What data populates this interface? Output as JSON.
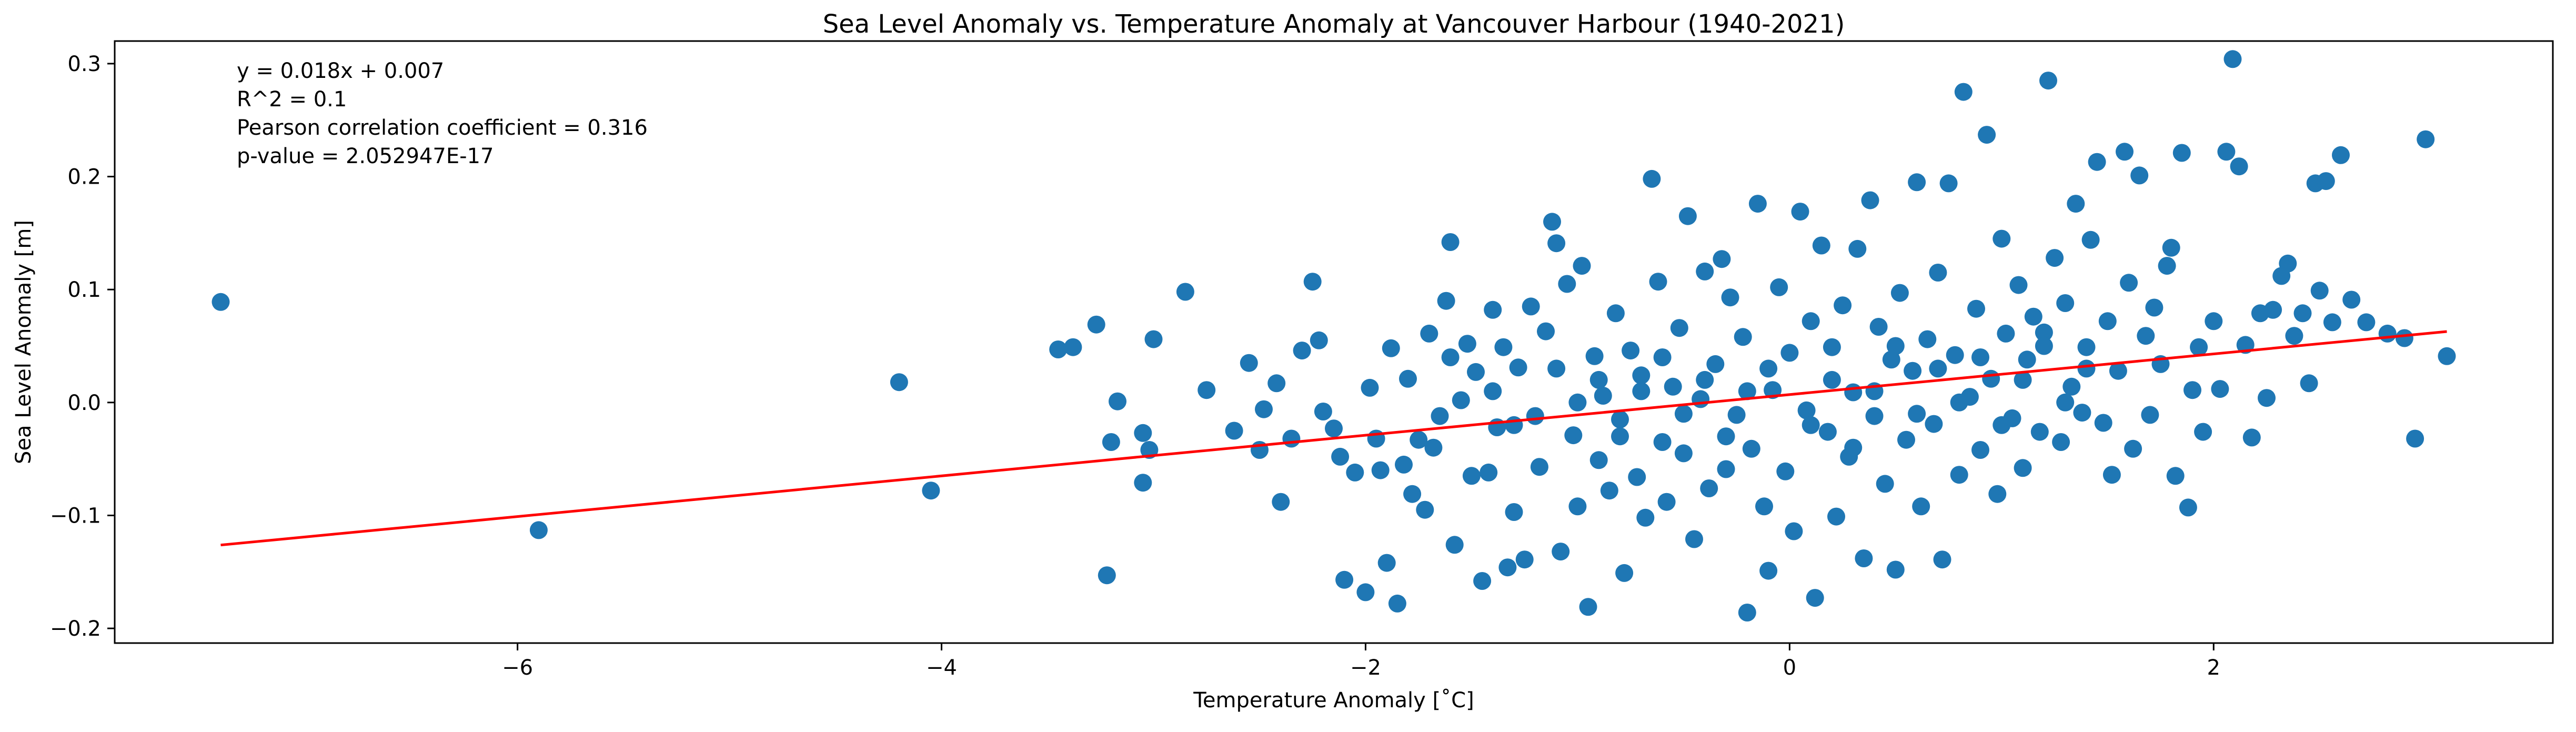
{
  "chart_data": {
    "type": "scatter",
    "title": "Sea Level Anomaly vs. Temperature Anomaly at Vancouver Harbour (1940-2021)",
    "xlabel": "Temperature Anomaly [˚C]",
    "ylabel": "Sea Level Anomaly [m]",
    "xlim": [
      -7.9,
      3.6
    ],
    "ylim": [
      -0.213,
      0.32
    ],
    "xticks": [
      -6,
      -4,
      -2,
      0,
      2
    ],
    "xtick_labels": [
      "−6",
      "−4",
      "−2",
      "0",
      "2"
    ],
    "yticks": [
      -0.2,
      -0.1,
      0.0,
      0.1,
      0.2,
      0.3
    ],
    "ytick_labels": [
      "−0.2",
      "−0.1",
      "0.0",
      "0.1",
      "0.2",
      "0.3"
    ],
    "grid": false,
    "annotations": [
      "y = 0.018x + 0.007",
      "R^2 = 0.1",
      "Pearson correlation coefficient = 0.316",
      "p-value = 2.052947E-17"
    ],
    "fit": {
      "slope": 0.018,
      "intercept": 0.007,
      "x": [
        -7.4,
        3.1
      ],
      "color": "#ff0000"
    },
    "marker_color": "#1f77b4",
    "points": [
      [
        -7.4,
        0.089
      ],
      [
        -5.9,
        -0.113
      ],
      [
        -4.2,
        0.018
      ],
      [
        -4.05,
        -0.078
      ],
      [
        -3.45,
        0.047
      ],
      [
        -3.38,
        0.049
      ],
      [
        -3.27,
        0.069
      ],
      [
        -3.22,
        -0.153
      ],
      [
        -3.2,
        -0.035
      ],
      [
        -3.17,
        0.001
      ],
      [
        -3.05,
        -0.027
      ],
      [
        -3.05,
        -0.071
      ],
      [
        -3.02,
        -0.042
      ],
      [
        -3.0,
        0.056
      ],
      [
        -2.85,
        0.098
      ],
      [
        -2.75,
        0.011
      ],
      [
        -2.62,
        -0.025
      ],
      [
        -2.55,
        0.035
      ],
      [
        -2.5,
        -0.042
      ],
      [
        -2.48,
        -0.006
      ],
      [
        -2.42,
        0.017
      ],
      [
        -2.4,
        -0.088
      ],
      [
        -2.35,
        -0.032
      ],
      [
        -2.3,
        0.046
      ],
      [
        -2.25,
        0.107
      ],
      [
        -2.22,
        0.055
      ],
      [
        -2.2,
        -0.008
      ],
      [
        -2.15,
        -0.023
      ],
      [
        -2.12,
        -0.048
      ],
      [
        -2.1,
        -0.157
      ],
      [
        -2.05,
        -0.062
      ],
      [
        -2.0,
        -0.168
      ],
      [
        -1.98,
        0.013
      ],
      [
        -1.95,
        -0.032
      ],
      [
        -1.93,
        -0.06
      ],
      [
        -1.9,
        -0.142
      ],
      [
        -1.88,
        0.048
      ],
      [
        -1.85,
        -0.178
      ],
      [
        -1.82,
        -0.055
      ],
      [
        -1.8,
        0.021
      ],
      [
        -1.78,
        -0.081
      ],
      [
        -1.75,
        -0.033
      ],
      [
        -1.72,
        -0.095
      ],
      [
        -1.7,
        0.061
      ],
      [
        -1.68,
        -0.04
      ],
      [
        -1.65,
        -0.012
      ],
      [
        -1.62,
        0.09
      ],
      [
        -1.6,
        0.142
      ],
      [
        -1.58,
        -0.126
      ],
      [
        -1.55,
        0.002
      ],
      [
        -1.52,
        0.052
      ],
      [
        -1.5,
        -0.065
      ],
      [
        -1.48,
        0.027
      ],
      [
        -1.45,
        -0.158
      ],
      [
        -1.42,
        -0.062
      ],
      [
        -1.4,
        0.082
      ],
      [
        -1.38,
        -0.022
      ],
      [
        -1.35,
        0.049
      ],
      [
        -1.33,
        -0.146
      ],
      [
        -1.3,
        -0.097
      ],
      [
        -1.28,
        0.031
      ],
      [
        -1.25,
        -0.139
      ],
      [
        -1.22,
        0.085
      ],
      [
        -1.2,
        -0.012
      ],
      [
        -1.18,
        -0.057
      ],
      [
        -1.15,
        0.063
      ],
      [
        -1.12,
        0.16
      ],
      [
        -1.1,
        0.141
      ],
      [
        -1.08,
        -0.132
      ],
      [
        -1.05,
        0.105
      ],
      [
        -1.02,
        -0.029
      ],
      [
        -1.0,
        -0.092
      ],
      [
        -0.98,
        0.121
      ],
      [
        -0.95,
        -0.181
      ],
      [
        -0.92,
        0.041
      ],
      [
        -0.9,
        -0.051
      ],
      [
        -0.88,
        0.006
      ],
      [
        -0.85,
        -0.078
      ],
      [
        -0.82,
        0.079
      ],
      [
        -0.8,
        -0.015
      ],
      [
        -0.78,
        -0.151
      ],
      [
        -0.75,
        0.046
      ],
      [
        -0.72,
        -0.066
      ],
      [
        -0.7,
        0.024
      ],
      [
        -0.68,
        -0.102
      ],
      [
        -0.65,
        0.198
      ],
      [
        -0.62,
        0.107
      ],
      [
        -0.6,
        -0.035
      ],
      [
        -0.58,
        -0.088
      ],
      [
        -0.55,
        0.014
      ],
      [
        -0.52,
        0.066
      ],
      [
        -0.5,
        -0.045
      ],
      [
        -0.48,
        0.165
      ],
      [
        -0.45,
        -0.121
      ],
      [
        -0.42,
        0.003
      ],
      [
        -0.4,
        0.116
      ],
      [
        -0.38,
        -0.076
      ],
      [
        -0.35,
        0.034
      ],
      [
        -0.32,
        0.127
      ],
      [
        -0.3,
        -0.059
      ],
      [
        -0.28,
        0.093
      ],
      [
        -0.25,
        -0.011
      ],
      [
        -0.22,
        0.058
      ],
      [
        -0.2,
        -0.186
      ],
      [
        -0.18,
        -0.041
      ],
      [
        -0.15,
        0.176
      ],
      [
        -0.12,
        -0.092
      ],
      [
        -0.1,
        -0.149
      ],
      [
        -0.08,
        0.011
      ],
      [
        -0.05,
        0.102
      ],
      [
        -0.02,
        -0.061
      ],
      [
        0.0,
        0.044
      ],
      [
        0.02,
        -0.114
      ],
      [
        0.05,
        0.169
      ],
      [
        0.08,
        -0.007
      ],
      [
        0.1,
        0.072
      ],
      [
        0.12,
        -0.173
      ],
      [
        0.15,
        0.139
      ],
      [
        0.18,
        -0.026
      ],
      [
        0.2,
        0.049
      ],
      [
        0.22,
        -0.101
      ],
      [
        0.25,
        0.086
      ],
      [
        0.28,
        -0.048
      ],
      [
        0.3,
        0.009
      ],
      [
        0.32,
        0.136
      ],
      [
        0.35,
        -0.138
      ],
      [
        0.38,
        0.179
      ],
      [
        0.4,
        -0.012
      ],
      [
        0.42,
        0.067
      ],
      [
        0.45,
        -0.072
      ],
      [
        0.48,
        0.038
      ],
      [
        0.5,
        -0.148
      ],
      [
        0.52,
        0.097
      ],
      [
        0.55,
        -0.033
      ],
      [
        0.58,
        0.028
      ],
      [
        0.6,
        0.195
      ],
      [
        0.62,
        -0.092
      ],
      [
        0.65,
        0.056
      ],
      [
        0.68,
        -0.019
      ],
      [
        0.7,
        0.115
      ],
      [
        0.72,
        -0.139
      ],
      [
        0.75,
        0.194
      ],
      [
        0.78,
        0.042
      ],
      [
        0.8,
        -0.064
      ],
      [
        0.82,
        0.275
      ],
      [
        0.85,
        0.005
      ],
      [
        0.88,
        0.083
      ],
      [
        0.9,
        -0.042
      ],
      [
        0.93,
        0.237
      ],
      [
        0.95,
        0.021
      ],
      [
        0.98,
        -0.081
      ],
      [
        1.0,
        0.145
      ],
      [
        1.02,
        0.061
      ],
      [
        1.05,
        -0.014
      ],
      [
        1.08,
        0.104
      ],
      [
        1.1,
        -0.058
      ],
      [
        1.12,
        0.038
      ],
      [
        1.15,
        0.076
      ],
      [
        1.18,
        -0.026
      ],
      [
        1.2,
        0.062
      ],
      [
        1.22,
        0.285
      ],
      [
        1.25,
        0.128
      ],
      [
        1.28,
        -0.035
      ],
      [
        1.3,
        0.088
      ],
      [
        1.33,
        0.014
      ],
      [
        1.35,
        0.176
      ],
      [
        1.38,
        -0.009
      ],
      [
        1.4,
        0.049
      ],
      [
        1.42,
        0.144
      ],
      [
        1.45,
        0.213
      ],
      [
        1.48,
        -0.018
      ],
      [
        1.5,
        0.072
      ],
      [
        1.52,
        -0.064
      ],
      [
        1.55,
        0.028
      ],
      [
        1.58,
        0.222
      ],
      [
        1.6,
        0.106
      ],
      [
        1.62,
        -0.041
      ],
      [
        1.65,
        0.201
      ],
      [
        1.68,
        0.059
      ],
      [
        1.7,
        -0.011
      ],
      [
        1.72,
        0.084
      ],
      [
        1.75,
        0.034
      ],
      [
        1.78,
        0.121
      ],
      [
        1.8,
        0.137
      ],
      [
        1.82,
        -0.065
      ],
      [
        1.85,
        0.221
      ],
      [
        1.88,
        -0.093
      ],
      [
        1.9,
        0.011
      ],
      [
        1.93,
        0.049
      ],
      [
        1.95,
        -0.026
      ],
      [
        2.0,
        0.072
      ],
      [
        2.03,
        0.012
      ],
      [
        2.06,
        0.222
      ],
      [
        2.09,
        0.304
      ],
      [
        2.12,
        0.209
      ],
      [
        2.15,
        0.051
      ],
      [
        2.18,
        -0.031
      ],
      [
        2.22,
        0.079
      ],
      [
        2.25,
        0.004
      ],
      [
        2.28,
        0.082
      ],
      [
        2.32,
        0.112
      ],
      [
        2.35,
        0.123
      ],
      [
        2.38,
        0.059
      ],
      [
        2.42,
        0.079
      ],
      [
        2.45,
        0.017
      ],
      [
        2.48,
        0.194
      ],
      [
        2.5,
        0.099
      ],
      [
        2.53,
        0.196
      ],
      [
        2.56,
        0.071
      ],
      [
        2.6,
        0.219
      ],
      [
        2.65,
        0.091
      ],
      [
        2.72,
        0.071
      ],
      [
        2.82,
        0.061
      ],
      [
        2.9,
        0.057
      ],
      [
        2.95,
        -0.032
      ],
      [
        3.0,
        0.233
      ],
      [
        3.1,
        0.041
      ],
      [
        -1.6,
        0.04
      ],
      [
        -1.4,
        0.01
      ],
      [
        -1.3,
        -0.02
      ],
      [
        -1.1,
        0.03
      ],
      [
        -1.0,
        0.0
      ],
      [
        -0.9,
        0.02
      ],
      [
        -0.8,
        -0.03
      ],
      [
        -0.7,
        0.01
      ],
      [
        -0.6,
        0.04
      ],
      [
        -0.5,
        -0.01
      ],
      [
        -0.4,
        0.02
      ],
      [
        -0.3,
        -0.03
      ],
      [
        -0.2,
        0.01
      ],
      [
        -0.1,
        0.03
      ],
      [
        0.1,
        -0.02
      ],
      [
        0.2,
        0.02
      ],
      [
        0.3,
        -0.04
      ],
      [
        0.4,
        0.01
      ],
      [
        0.5,
        0.05
      ],
      [
        0.6,
        -0.01
      ],
      [
        0.7,
        0.03
      ],
      [
        0.8,
        0.0
      ],
      [
        0.9,
        0.04
      ],
      [
        1.0,
        -0.02
      ],
      [
        1.1,
        0.02
      ],
      [
        1.2,
        0.05
      ],
      [
        1.3,
        0.0
      ],
      [
        1.4,
        0.03
      ]
    ]
  }
}
